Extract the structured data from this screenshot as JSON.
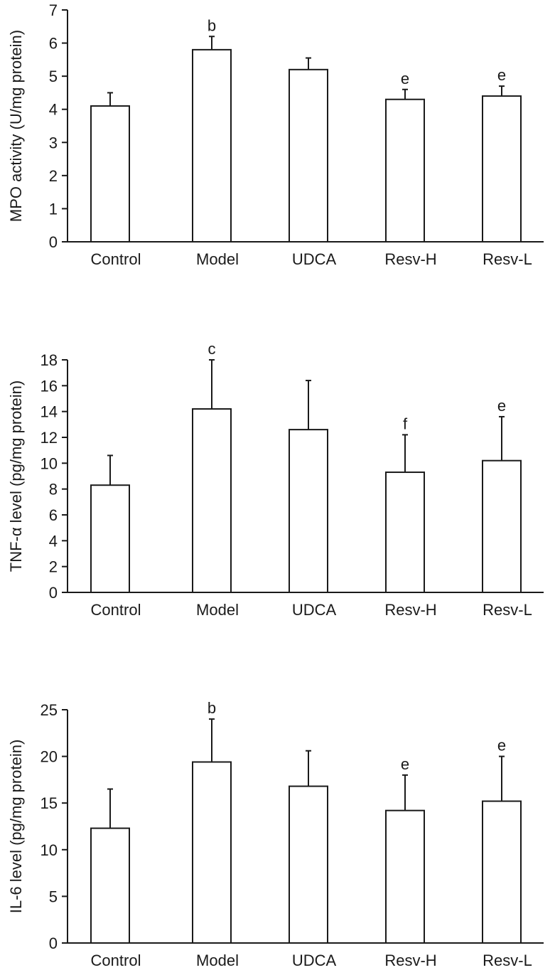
{
  "chart_data": [
    {
      "type": "bar",
      "title": "",
      "xlabel": "",
      "ylabel": "MPO activity (U/mg protein)",
      "ylim": [
        0,
        7
      ],
      "yticks": [
        0,
        1,
        2,
        3,
        4,
        5,
        6,
        7
      ],
      "categories": [
        "Control",
        "Model",
        "UDCA",
        "Resv-H",
        "Resv-L"
      ],
      "values": [
        4.1,
        5.8,
        5.2,
        4.3,
        4.4
      ],
      "errors": [
        0.4,
        0.4,
        0.35,
        0.3,
        0.3
      ],
      "significance": [
        "",
        "b",
        "",
        "e",
        "e"
      ]
    },
    {
      "type": "bar",
      "title": "",
      "xlabel": "",
      "ylabel": "TNF-α level (pg/mg protein)",
      "ylim": [
        0,
        18
      ],
      "yticks": [
        0,
        2,
        4,
        6,
        8,
        10,
        12,
        14,
        16,
        18
      ],
      "categories": [
        "Control",
        "Model",
        "UDCA",
        "Resv-H",
        "Resv-L"
      ],
      "values": [
        8.3,
        14.2,
        12.6,
        9.3,
        10.2
      ],
      "errors": [
        2.3,
        3.8,
        3.8,
        2.9,
        3.4
      ],
      "significance": [
        "",
        "c",
        "",
        "f",
        "e"
      ]
    },
    {
      "type": "bar",
      "title": "",
      "xlabel": "",
      "ylabel": "IL-6 level (pg/mg protein)",
      "ylim": [
        0,
        25
      ],
      "yticks": [
        0,
        5,
        10,
        15,
        20,
        25
      ],
      "categories": [
        "Control",
        "Model",
        "UDCA",
        "Resv-H",
        "Resv-L"
      ],
      "values": [
        12.3,
        19.4,
        16.8,
        14.2,
        15.2
      ],
      "errors": [
        4.2,
        4.6,
        3.8,
        3.8,
        4.8
      ],
      "significance": [
        "",
        "b",
        "",
        "e",
        "e"
      ]
    }
  ]
}
